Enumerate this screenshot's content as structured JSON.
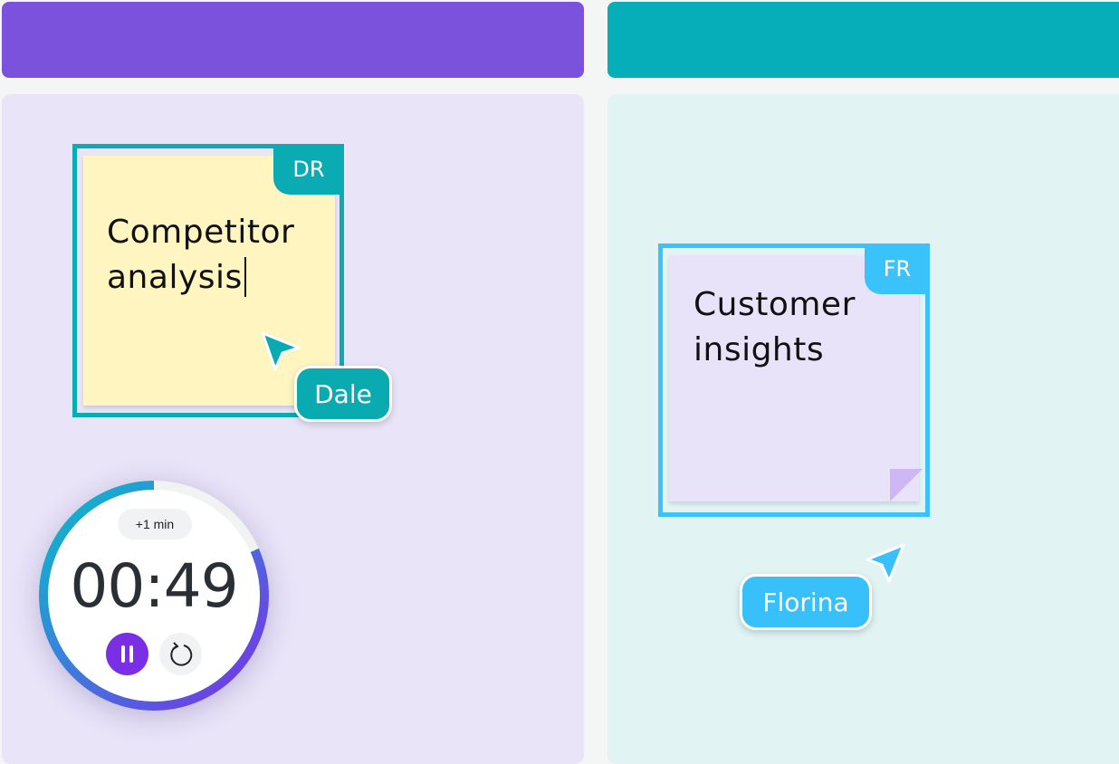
{
  "columns": [
    {
      "header_color": "#7b52dc",
      "body_color": "#e9e4f8"
    },
    {
      "header_color": "#05aeb8",
      "body_color": "#e1f3f3"
    }
  ],
  "notes": [
    {
      "text_line1": "Competitor",
      "text_line2": "analysis",
      "badge": "DR",
      "frame_color": "#0aabb2",
      "note_color": "#fef5c0",
      "editing": true
    },
    {
      "text_line1": "Customer",
      "text_line2": "insights",
      "badge": "FR",
      "frame_color": "#3ac2fa",
      "note_color": "#e8e3f9"
    }
  ],
  "cursors": [
    {
      "name": "Dale",
      "color": "#0aabb0",
      "icon": "cursor-arrow-icon"
    },
    {
      "name": "Florina",
      "color": "#38c0fb",
      "icon": "cursor-arrow-icon"
    }
  ],
  "timer": {
    "time": "00:49",
    "add_label": "+1 min",
    "progress": 0.817,
    "pause_icon": "pause-icon",
    "reset_icon": "reset-icon",
    "accent": "#7b2fe4"
  }
}
